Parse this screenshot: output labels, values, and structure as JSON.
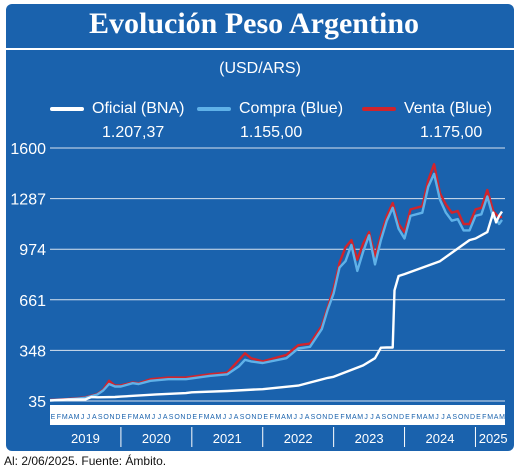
{
  "title": "Evolución Peso Argentino",
  "subtitle": "(USD/ARS)",
  "legend": [
    {
      "label": "Oficial (BNA)",
      "value": "1.207,37",
      "color": "#ffffff"
    },
    {
      "label": "Compra (Blue)",
      "value": "1.155,00",
      "color": "#5fb1e8"
    },
    {
      "label": "Venta (Blue)",
      "value": "1.175,00",
      "color": "#d0242c"
    }
  ],
  "source": "Al: 2/06/2025. Fuente: Ámbito.",
  "chart_data": {
    "type": "line",
    "y_ticks": [
      "1600",
      "1287",
      "974",
      "661",
      "348",
      "35"
    ],
    "ylim": [
      35,
      1600
    ],
    "x_unit": "month index (0 = Jan 2019)",
    "xlim": [
      0,
      77
    ],
    "month_letters": "EFMAMJJASOND",
    "years": [
      "2019",
      "2020",
      "2021",
      "2022",
      "2023",
      "2024",
      "2025"
    ],
    "last_year_months": 6,
    "grid": true,
    "series": [
      {
        "name": "Oficial (BNA)",
        "color": "#ffffff",
        "points": [
          [
            0,
            38
          ],
          [
            3,
            44
          ],
          [
            6,
            45
          ],
          [
            7,
            60
          ],
          [
            8,
            58
          ],
          [
            11,
            60
          ],
          [
            12,
            62
          ],
          [
            18,
            76
          ],
          [
            23,
            84
          ],
          [
            24,
            89
          ],
          [
            30,
            97
          ],
          [
            35,
            107
          ],
          [
            36,
            108
          ],
          [
            42,
            130
          ],
          [
            47,
            178
          ],
          [
            48,
            185
          ],
          [
            53,
            255
          ],
          [
            55,
            300
          ],
          [
            56,
            365
          ],
          [
            57,
            366
          ],
          [
            58,
            366
          ],
          [
            58.3,
            720
          ],
          [
            59,
            808
          ],
          [
            60,
            820
          ],
          [
            66,
            900
          ],
          [
            71,
            1030
          ],
          [
            72,
            1040
          ],
          [
            74,
            1080
          ],
          [
            75,
            1200
          ],
          [
            75.5,
            1140
          ],
          [
            76,
            1180
          ],
          [
            76.5,
            1207
          ]
        ]
      },
      {
        "name": "Compra (Blue)",
        "color": "#5fb1e8",
        "points": [
          [
            0,
            40
          ],
          [
            3,
            45
          ],
          [
            6,
            55
          ],
          [
            8,
            75
          ],
          [
            9,
            100
          ],
          [
            10,
            140
          ],
          [
            11,
            125
          ],
          [
            12,
            125
          ],
          [
            14,
            145
          ],
          [
            15,
            140
          ],
          [
            17,
            160
          ],
          [
            20,
            170
          ],
          [
            23,
            170
          ],
          [
            27,
            190
          ],
          [
            30,
            200
          ],
          [
            32,
            250
          ],
          [
            33,
            290
          ],
          [
            34,
            280
          ],
          [
            36,
            270
          ],
          [
            40,
            300
          ],
          [
            42,
            360
          ],
          [
            44,
            370
          ],
          [
            46,
            480
          ],
          [
            47,
            600
          ],
          [
            48,
            700
          ],
          [
            49,
            860
          ],
          [
            50,
            900
          ],
          [
            51,
            1000
          ],
          [
            52,
            840
          ],
          [
            53,
            960
          ],
          [
            54,
            1060
          ],
          [
            55,
            880
          ],
          [
            56,
            1030
          ],
          [
            57,
            1150
          ],
          [
            58,
            1230
          ],
          [
            59,
            1100
          ],
          [
            60,
            1040
          ],
          [
            61,
            1180
          ],
          [
            63,
            1200
          ],
          [
            64,
            1360
          ],
          [
            65,
            1440
          ],
          [
            66,
            1280
          ],
          [
            67,
            1200
          ],
          [
            68,
            1150
          ],
          [
            69,
            1160
          ],
          [
            70,
            1090
          ],
          [
            71,
            1090
          ],
          [
            72,
            1180
          ],
          [
            73,
            1190
          ],
          [
            74,
            1300
          ],
          [
            75,
            1170
          ],
          [
            75.5,
            1160
          ],
          [
            76,
            1130
          ],
          [
            76.5,
            1155
          ]
        ]
      },
      {
        "name": "Venta (Blue)",
        "color": "#d0242c",
        "points": [
          [
            0,
            42
          ],
          [
            3,
            47
          ],
          [
            6,
            58
          ],
          [
            8,
            78
          ],
          [
            9,
            105
          ],
          [
            10,
            160
          ],
          [
            11,
            130
          ],
          [
            12,
            132
          ],
          [
            14,
            150
          ],
          [
            15,
            145
          ],
          [
            17,
            170
          ],
          [
            20,
            180
          ],
          [
            23,
            180
          ],
          [
            27,
            200
          ],
          [
            30,
            210
          ],
          [
            32,
            290
          ],
          [
            33,
            330
          ],
          [
            34,
            300
          ],
          [
            36,
            280
          ],
          [
            40,
            320
          ],
          [
            42,
            380
          ],
          [
            44,
            390
          ],
          [
            46,
            500
          ],
          [
            47,
            615
          ],
          [
            48,
            730
          ],
          [
            49,
            890
          ],
          [
            50,
            985
          ],
          [
            51,
            1030
          ],
          [
            52,
            910
          ],
          [
            53,
            1010
          ],
          [
            54,
            1080
          ],
          [
            55,
            930
          ],
          [
            56,
            1060
          ],
          [
            57,
            1180
          ],
          [
            58,
            1260
          ],
          [
            59,
            1130
          ],
          [
            60,
            1080
          ],
          [
            61,
            1220
          ],
          [
            63,
            1240
          ],
          [
            64,
            1400
          ],
          [
            65,
            1500
          ],
          [
            66,
            1320
          ],
          [
            67,
            1250
          ],
          [
            68,
            1200
          ],
          [
            69,
            1210
          ],
          [
            70,
            1130
          ],
          [
            71,
            1130
          ],
          [
            72,
            1220
          ],
          [
            73,
            1230
          ],
          [
            74,
            1340
          ],
          [
            75,
            1210
          ],
          [
            75.5,
            1190
          ],
          [
            76,
            1170
          ],
          [
            76.5,
            1175
          ]
        ]
      }
    ]
  }
}
